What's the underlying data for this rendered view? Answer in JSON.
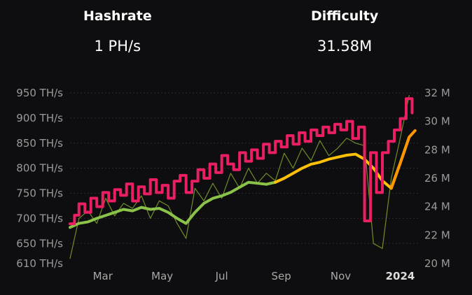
{
  "stats": {
    "hashrate": {
      "title": "Hashrate",
      "value": "1 PH/s"
    },
    "difficulty": {
      "title": "Difficulty",
      "value": "31.58M"
    }
  },
  "chart_data": {
    "type": "line",
    "title": "",
    "xlabel": "",
    "ylabel": "",
    "x_ticks": [
      {
        "label": "Mar",
        "month_index": 1,
        "bold": false
      },
      {
        "label": "May",
        "month_index": 3,
        "bold": false
      },
      {
        "label": "Jul",
        "month_index": 5,
        "bold": false
      },
      {
        "label": "Sep",
        "month_index": 7,
        "bold": false
      },
      {
        "label": "Nov",
        "month_index": 9,
        "bold": false
      },
      {
        "label": "2024",
        "month_index": 11,
        "bold": true
      }
    ],
    "y_left": {
      "unit": "TH/s",
      "range": [
        610,
        950
      ],
      "ticks": [
        "950 TH/s",
        "900 TH/s",
        "850 TH/s",
        "800 TH/s",
        "750 TH/s",
        "700 TH/s",
        "650 TH/s",
        "610 TH/s"
      ],
      "tick_values": [
        950,
        900,
        850,
        800,
        750,
        700,
        650,
        610
      ]
    },
    "y_right": {
      "unit": "M",
      "range": [
        20,
        32
      ],
      "ticks": [
        "32 M",
        "30 M",
        "28 M",
        "26 M",
        "24 M",
        "22 M",
        "20 M"
      ],
      "tick_values": [
        32,
        30,
        28,
        26,
        24,
        22,
        20
      ]
    },
    "grid": true,
    "series": [
      {
        "axis": "left",
        "color": "#7fa32e",
        "style": "noisy-thin",
        "x": [
          0,
          0.3,
          0.6,
          0.9,
          1.2,
          1.5,
          1.8,
          2.1,
          2.4,
          2.7,
          3.0,
          3.3,
          3.6,
          3.9,
          4.2,
          4.5,
          4.8,
          5.1,
          5.4,
          5.7,
          6.0,
          6.3,
          6.6,
          6.9,
          7.2,
          7.5,
          7.8,
          8.1,
          8.4,
          8.7,
          9.0,
          9.3,
          9.6,
          9.9,
          10.2,
          10.5,
          10.8,
          11.1,
          11.4
        ],
        "values": [
          620,
          700,
          715,
          690,
          740,
          705,
          730,
          720,
          745,
          700,
          735,
          725,
          690,
          660,
          760,
          735,
          770,
          740,
          790,
          760,
          800,
          770,
          790,
          775,
          830,
          800,
          840,
          815,
          855,
          825,
          840,
          860,
          850,
          845,
          650,
          640,
          780,
          860,
          945
        ]
      },
      {
        "axis": "left",
        "color": "#8bc34a",
        "style": "smooth",
        "x": [
          0,
          0.3,
          0.6,
          0.9,
          1.2,
          1.5,
          1.8,
          2.1,
          2.4,
          2.7,
          3.0,
          3.3,
          3.6,
          3.9,
          4.2,
          4.5,
          4.8,
          5.1,
          5.4,
          5.7,
          6.0,
          6.3,
          6.6,
          6.9
        ],
        "values": [
          682,
          690,
          693,
          700,
          706,
          712,
          718,
          715,
          722,
          718,
          720,
          712,
          700,
          690,
          712,
          730,
          740,
          745,
          752,
          762,
          772,
          770,
          768,
          772
        ]
      },
      {
        "axis": "left",
        "color": "#ffc107",
        "style": "smooth",
        "x": [
          6.9,
          7.2,
          7.5,
          7.8,
          8.1,
          8.4,
          8.7,
          9.0,
          9.3,
          9.6,
          9.9,
          10.2,
          10.5,
          10.8,
          11.1,
          11.4
        ],
        "values": [
          772,
          780,
          790,
          800,
          808,
          812,
          818,
          822,
          826,
          828,
          818,
          800,
          775,
          760,
          810,
          862
        ]
      },
      {
        "axis": "left",
        "color": "#ff9800",
        "style": "smooth",
        "x": [
          10.8,
          11.1,
          11.4,
          11.6
        ],
        "values": [
          760,
          810,
          862,
          875
        ]
      },
      {
        "axis": "right",
        "color": "#e91e63",
        "style": "stepped",
        "x": [
          0,
          0.15,
          0.3,
          0.5,
          0.7,
          0.9,
          1.1,
          1.3,
          1.5,
          1.7,
          1.9,
          2.1,
          2.3,
          2.5,
          2.7,
          2.9,
          3.1,
          3.3,
          3.5,
          3.7,
          3.9,
          4.1,
          4.3,
          4.5,
          4.7,
          4.9,
          5.1,
          5.3,
          5.5,
          5.7,
          5.9,
          6.1,
          6.3,
          6.5,
          6.7,
          6.9,
          7.1,
          7.3,
          7.5,
          7.7,
          7.9,
          8.1,
          8.3,
          8.5,
          8.7,
          8.9,
          9.1,
          9.3,
          9.5,
          9.7,
          9.9,
          10.1,
          10.3,
          10.5,
          10.7,
          10.9,
          11.1,
          11.3,
          11.5
        ],
        "values": [
          22.8,
          23.4,
          24.2,
          23.6,
          24.6,
          24.0,
          25.0,
          24.4,
          25.2,
          24.8,
          25.6,
          24.4,
          25.4,
          24.9,
          25.9,
          25.0,
          25.5,
          24.6,
          25.8,
          26.2,
          25.0,
          25.8,
          26.6,
          26.0,
          27.0,
          26.4,
          27.6,
          27.0,
          26.6,
          27.8,
          27.2,
          28.0,
          27.4,
          28.4,
          27.8,
          28.6,
          28.2,
          29.0,
          28.4,
          29.2,
          28.6,
          29.4,
          29.0,
          29.6,
          29.2,
          29.8,
          29.4,
          30.0,
          28.8,
          29.6,
          23.0,
          27.8,
          25.0,
          27.8,
          28.6,
          29.4,
          30.2,
          31.6,
          30.6
        ]
      }
    ]
  }
}
